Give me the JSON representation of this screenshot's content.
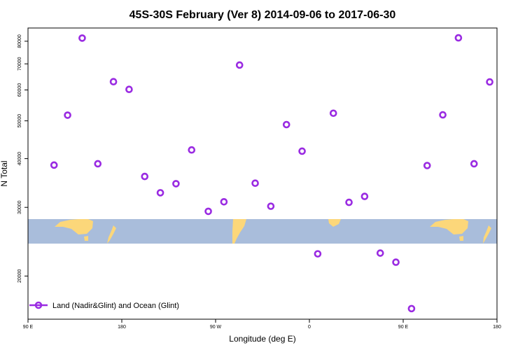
{
  "chart_data": {
    "type": "scatter",
    "title": "45S-30S February (Ver 8)   2014-09-06 to 2017-06-30",
    "xlabel": "Longitude (deg E)",
    "ylabel": "N Total",
    "x_ticks": [
      {
        "value": 90,
        "label": "90 E"
      },
      {
        "value": 180,
        "label": "180"
      },
      {
        "value": 270,
        "label": "90 W"
      },
      {
        "value": 360,
        "label": "0"
      },
      {
        "value": 450,
        "label": "90 E"
      },
      {
        "value": 540,
        "label": "180"
      }
    ],
    "xlim": [
      90,
      540
    ],
    "y_scale": "log",
    "y_ticks": [
      20000,
      30000,
      40000,
      50000,
      60000,
      70000,
      80000
    ],
    "ylim": [
      15500,
      86500
    ],
    "grid": false,
    "legend": {
      "position": "bottom-left",
      "label": "Land (Nadir&Glint) and Ocean (Glint)"
    },
    "series": [
      {
        "name": "Land (Nadir&Glint) and Ocean (Glint)",
        "color": "#9a2be2",
        "marker": "open-circle",
        "x": [
          115,
          128,
          142,
          157,
          172,
          187,
          202,
          217,
          232,
          247,
          263,
          278,
          293,
          308,
          323,
          338,
          353,
          368,
          383,
          398,
          413,
          428,
          443,
          458,
          473,
          488,
          503,
          518,
          533
        ],
        "y": [
          38500,
          51700,
          81500,
          38800,
          63000,
          60200,
          36000,
          32700,
          34500,
          42100,
          29300,
          31000,
          69500,
          34600,
          30200,
          48900,
          41800,
          22800,
          52300,
          30900,
          32000,
          22900,
          21700,
          16500,
          38400,
          51800,
          81600,
          38800,
          62900
        ]
      }
    ]
  },
  "map_band": {
    "ocean_color": "#a9bddb",
    "land_color": "#fcd77a",
    "description": "world map strip 45S-30S"
  }
}
